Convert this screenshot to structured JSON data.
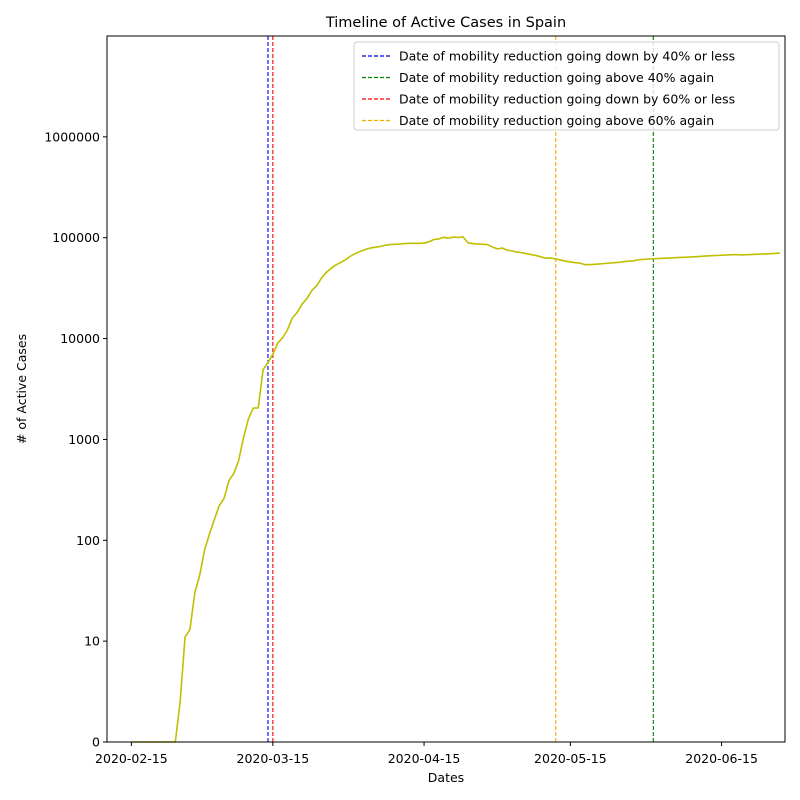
{
  "chart_data": {
    "type": "line",
    "title": "Timeline of Active Cases in Spain",
    "xlabel": "Dates",
    "ylabel": "# of Active Cases",
    "y_scale": "symlog",
    "ylim": [
      0,
      10000000
    ],
    "xlim": [
      "2020-02-10",
      "2020-06-28"
    ],
    "grid": false,
    "legend_position": "top-right",
    "x_ticks": [
      "2020-02-15",
      "2020-03-15",
      "2020-04-15",
      "2020-05-15",
      "2020-06-15"
    ],
    "y_ticks": [
      {
        "value": 0,
        "label": "0"
      },
      {
        "value": 10,
        "label": "10"
      },
      {
        "value": 100,
        "label": "100"
      },
      {
        "value": 1000,
        "label": "1000"
      },
      {
        "value": 10000,
        "label": "10000"
      },
      {
        "value": 100000,
        "label": "100000"
      },
      {
        "value": 1000000,
        "label": "1000000"
      }
    ],
    "series": [
      {
        "color": "#bfbf00",
        "points": [
          [
            "2020-02-15",
            0
          ],
          [
            "2020-02-20",
            0
          ],
          [
            "2020-02-24",
            0
          ],
          [
            "2020-02-25",
            4
          ],
          [
            "2020-02-26",
            11
          ],
          [
            "2020-02-27",
            13
          ],
          [
            "2020-02-28",
            30
          ],
          [
            "2020-02-29",
            45
          ],
          [
            "2020-03-01",
            80
          ],
          [
            "2020-03-02",
            115
          ],
          [
            "2020-03-03",
            160
          ],
          [
            "2020-03-04",
            220
          ],
          [
            "2020-03-05",
            260
          ],
          [
            "2020-03-06",
            390
          ],
          [
            "2020-03-07",
            460
          ],
          [
            "2020-03-08",
            620
          ],
          [
            "2020-03-09",
            1050
          ],
          [
            "2020-03-10",
            1600
          ],
          [
            "2020-03-11",
            2050
          ],
          [
            "2020-03-12",
            2050
          ],
          [
            "2020-03-13",
            4900
          ],
          [
            "2020-03-14",
            5800
          ],
          [
            "2020-03-15",
            7000
          ],
          [
            "2020-03-16",
            9000
          ],
          [
            "2020-03-17",
            10200
          ],
          [
            "2020-03-18",
            12200
          ],
          [
            "2020-03-19",
            16000
          ],
          [
            "2020-03-20",
            18200
          ],
          [
            "2020-03-21",
            22000
          ],
          [
            "2020-03-22",
            25000
          ],
          [
            "2020-03-23",
            30000
          ],
          [
            "2020-03-24",
            33500
          ],
          [
            "2020-03-25",
            40000
          ],
          [
            "2020-03-26",
            45500
          ],
          [
            "2020-03-27",
            50000
          ],
          [
            "2020-03-28",
            54000
          ],
          [
            "2020-03-29",
            57000
          ],
          [
            "2020-03-30",
            61000
          ],
          [
            "2020-03-31",
            66000
          ],
          [
            "2020-04-01",
            70000
          ],
          [
            "2020-04-02",
            73500
          ],
          [
            "2020-04-03",
            76500
          ],
          [
            "2020-04-04",
            79000
          ],
          [
            "2020-04-05",
            80500
          ],
          [
            "2020-04-06",
            82000
          ],
          [
            "2020-04-07",
            84000
          ],
          [
            "2020-04-08",
            85500
          ],
          [
            "2020-04-09",
            86000
          ],
          [
            "2020-04-10",
            86500
          ],
          [
            "2020-04-11",
            87500
          ],
          [
            "2020-04-12",
            88000
          ],
          [
            "2020-04-13",
            88000
          ],
          [
            "2020-04-14",
            88000
          ],
          [
            "2020-04-15",
            88500
          ],
          [
            "2020-04-16",
            91000
          ],
          [
            "2020-04-17",
            96000
          ],
          [
            "2020-04-18",
            97000
          ],
          [
            "2020-04-19",
            101000
          ],
          [
            "2020-04-20",
            99000
          ],
          [
            "2020-04-21",
            101500
          ],
          [
            "2020-04-22",
            100500
          ],
          [
            "2020-04-23",
            102000
          ],
          [
            "2020-04-24",
            89000
          ],
          [
            "2020-04-25",
            87500
          ],
          [
            "2020-04-26",
            86500
          ],
          [
            "2020-04-27",
            86000
          ],
          [
            "2020-04-28",
            85500
          ],
          [
            "2020-04-29",
            81000
          ],
          [
            "2020-04-30",
            77500
          ],
          [
            "2020-05-01",
            79000
          ],
          [
            "2020-05-02",
            75500
          ],
          [
            "2020-05-03",
            74000
          ],
          [
            "2020-05-04",
            72000
          ],
          [
            "2020-05-05",
            71000
          ],
          [
            "2020-05-06",
            69500
          ],
          [
            "2020-05-07",
            68000
          ],
          [
            "2020-05-08",
            66500
          ],
          [
            "2020-05-09",
            64500
          ],
          [
            "2020-05-10",
            62500
          ],
          [
            "2020-05-11",
            63000
          ],
          [
            "2020-05-12",
            61500
          ],
          [
            "2020-05-13",
            60000
          ],
          [
            "2020-05-14",
            58500
          ],
          [
            "2020-05-15",
            57500
          ],
          [
            "2020-05-16",
            56500
          ],
          [
            "2020-05-17",
            56000
          ],
          [
            "2020-05-18",
            54000
          ],
          [
            "2020-05-19",
            54200
          ],
          [
            "2020-05-20",
            54500
          ],
          [
            "2020-05-21",
            55000
          ],
          [
            "2020-05-22",
            55500
          ],
          [
            "2020-05-23",
            56000
          ],
          [
            "2020-05-24",
            56500
          ],
          [
            "2020-05-25",
            57000
          ],
          [
            "2020-05-26",
            58000
          ],
          [
            "2020-05-27",
            58500
          ],
          [
            "2020-05-28",
            59000
          ],
          [
            "2020-05-29",
            60500
          ],
          [
            "2020-05-30",
            61000
          ],
          [
            "2020-05-31",
            61500
          ],
          [
            "2020-06-03",
            62500
          ],
          [
            "2020-06-06",
            63500
          ],
          [
            "2020-06-09",
            64500
          ],
          [
            "2020-06-12",
            66000
          ],
          [
            "2020-06-15",
            67000
          ],
          [
            "2020-06-18",
            68000
          ],
          [
            "2020-06-19",
            67500
          ],
          [
            "2020-06-22",
            68500
          ],
          [
            "2020-06-25",
            69500
          ],
          [
            "2020-06-27",
            70500
          ]
        ]
      }
    ],
    "vlines": [
      {
        "label": "Date of mobility reduction going down by 40% or less",
        "date": "2020-03-14",
        "color": "#0000ff"
      },
      {
        "label": "Date of mobility reduction going above 40% again",
        "date": "2020-06-01",
        "color": "#008000"
      },
      {
        "label": "Date of mobility reduction going down by 60% or less",
        "date": "2020-03-15",
        "color": "#ff0000"
      },
      {
        "label": "Date of mobility reduction going above 60% again",
        "date": "2020-05-12",
        "color": "#ffa500"
      }
    ]
  }
}
